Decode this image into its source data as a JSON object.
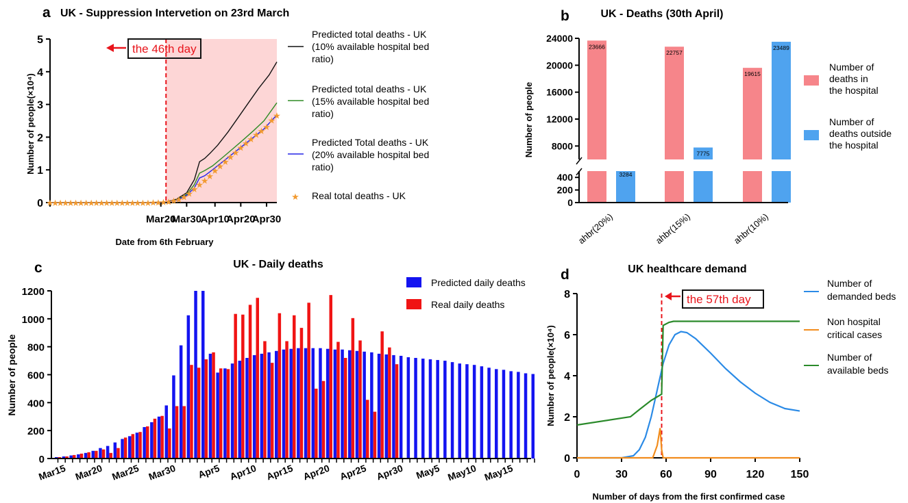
{
  "colors": {
    "shade": "#fdd6d6",
    "red": "#e8141b",
    "black": "#111111",
    "green": "#2e8b24",
    "blue": "#2424e6",
    "orange": "#f29a30",
    "bar_pink": "#f6858a",
    "bar_blue": "#4fa3ef",
    "d_blue": "#2a8ae6",
    "d_orange": "#f28c1c",
    "d_green": "#2a8a2a",
    "c_blue": "#1414f0",
    "c_red": "#f01414"
  },
  "panels": {
    "a": {
      "letter": "a",
      "title": "UK - Suppression Intervetion on 23rd March",
      "ylabel": "Number of people(×10⁴)",
      "xlabel": "Date from 6th February",
      "annotation": "the 46th day",
      "xtick_labels": [
        "Mar20",
        "Mar30",
        "Apr10",
        "Apr20",
        "Apr30"
      ],
      "legend": [
        {
          "lines": [
            "Predicted total deaths - UK",
            "(10% available hospital bed",
            "ratio)"
          ]
        },
        {
          "lines": [
            "Predicted total deaths - UK",
            "(15% available hospital bed",
            "ratio)"
          ]
        },
        {
          "lines": [
            "Predicted Total deaths - UK",
            "(20% available hospital bed",
            "ratio)"
          ]
        },
        {
          "lines": [
            "Real total deaths - UK"
          ]
        }
      ]
    },
    "b": {
      "letter": "b",
      "title": "UK - Deaths (30th April)",
      "ylabel": "Number of people",
      "legend": [
        {
          "lines": [
            "Number of",
            "deaths in",
            "the hospital"
          ]
        },
        {
          "lines": [
            "Number of",
            "deaths outside",
            "the hospital"
          ]
        }
      ]
    },
    "c": {
      "letter": "c",
      "title": "UK - Daily deaths",
      "ylabel": "Number of people",
      "legend": [
        "Predicted daily deaths",
        "Real daily deaths"
      ]
    },
    "d": {
      "letter": "d",
      "title": "UK healthcare demand",
      "ylabel": "Number of people(×10⁴)",
      "xlabel": "Number of days from the first confirmed case",
      "annotation": "the 57th day",
      "legend": [
        {
          "lines": [
            "Number of",
            "demanded beds"
          ]
        },
        {
          "lines": [
            "Non hospital",
            "critical cases"
          ]
        },
        {
          "lines": [
            "Number of",
            "available beds"
          ]
        }
      ]
    }
  },
  "chart_data": [
    {
      "id": "a",
      "type": "line",
      "title": "UK - Suppression Intervetion on 23rd March",
      "xlabel": "Date from 6th February",
      "ylabel": "Number of people(×10⁴)",
      "x_day_range": [
        1,
        84
      ],
      "ylim": [
        0,
        5
      ],
      "yticks": [
        0,
        1,
        2,
        3,
        4,
        5
      ],
      "xtick_days": [
        44,
        54,
        65,
        75,
        85
      ],
      "xtick_labels": [
        "Mar20",
        "Mar30",
        "Apr10",
        "Apr20",
        "Apr30"
      ],
      "intervention_day": 46,
      "shaded_from_day": 46,
      "series": [
        {
          "name": "Predicted total deaths - UK (10% available hospital bed ratio)",
          "style": "line",
          "color_key": "black",
          "points": [
            [
              1,
              0
            ],
            [
              40,
              0
            ],
            [
              46,
              0.02
            ],
            [
              50,
              0.1
            ],
            [
              54,
              0.3
            ],
            [
              57,
              0.7
            ],
            [
              59,
              1.25
            ],
            [
              61,
              1.35
            ],
            [
              63,
              1.5
            ],
            [
              66,
              1.75
            ],
            [
              70,
              2.15
            ],
            [
              74,
              2.6
            ],
            [
              78,
              3.05
            ],
            [
              82,
              3.5
            ],
            [
              86,
              3.9
            ],
            [
              89,
              4.3
            ]
          ]
        },
        {
          "name": "Predicted total deaths - UK (15% available hospital bed ratio)",
          "style": "line",
          "color_key": "green",
          "points": [
            [
              1,
              0
            ],
            [
              40,
              0
            ],
            [
              46,
              0.02
            ],
            [
              50,
              0.08
            ],
            [
              54,
              0.25
            ],
            [
              57,
              0.55
            ],
            [
              59,
              0.9
            ],
            [
              61,
              0.98
            ],
            [
              64,
              1.12
            ],
            [
              68,
              1.38
            ],
            [
              72,
              1.65
            ],
            [
              76,
              1.92
            ],
            [
              80,
              2.2
            ],
            [
              84,
              2.5
            ],
            [
              89,
              3.05
            ]
          ]
        },
        {
          "name": "Predicted Total deaths - UK (20% available hospital bed ratio)",
          "style": "line",
          "color_key": "blue",
          "points": [
            [
              1,
              0
            ],
            [
              40,
              0
            ],
            [
              46,
              0.02
            ],
            [
              50,
              0.07
            ],
            [
              54,
              0.22
            ],
            [
              57,
              0.45
            ],
            [
              59,
              0.75
            ],
            [
              61,
              0.82
            ],
            [
              64,
              1.0
            ],
            [
              68,
              1.25
            ],
            [
              72,
              1.5
            ],
            [
              76,
              1.75
            ],
            [
              80,
              2.0
            ],
            [
              84,
              2.25
            ],
            [
              89,
              2.68
            ]
          ]
        },
        {
          "name": "Real total deaths - UK",
          "style": "marker",
          "color_key": "orange",
          "points": [
            [
              1,
              0
            ],
            [
              3,
              0
            ],
            [
              5,
              0
            ],
            [
              7,
              0
            ],
            [
              9,
              0
            ],
            [
              11,
              0
            ],
            [
              13,
              0
            ],
            [
              15,
              0
            ],
            [
              17,
              0
            ],
            [
              19,
              0
            ],
            [
              21,
              0
            ],
            [
              23,
              0
            ],
            [
              25,
              0
            ],
            [
              27,
              0
            ],
            [
              29,
              0
            ],
            [
              31,
              0
            ],
            [
              33,
              0
            ],
            [
              35,
              0
            ],
            [
              37,
              0
            ],
            [
              39,
              0
            ],
            [
              41,
              0.01
            ],
            [
              43,
              0.01
            ],
            [
              45,
              0.02
            ],
            [
              47,
              0.03
            ],
            [
              49,
              0.06
            ],
            [
              51,
              0.1
            ],
            [
              53,
              0.18
            ],
            [
              55,
              0.28
            ],
            [
              57,
              0.42
            ],
            [
              59,
              0.55
            ],
            [
              61,
              0.68
            ],
            [
              63,
              0.82
            ],
            [
              65,
              0.98
            ],
            [
              67,
              1.12
            ],
            [
              69,
              1.26
            ],
            [
              71,
              1.4
            ],
            [
              73,
              1.54
            ],
            [
              75,
              1.68
            ],
            [
              77,
              1.82
            ],
            [
              79,
              1.95
            ],
            [
              81,
              2.08
            ],
            [
              83,
              2.2
            ],
            [
              85,
              2.32
            ],
            [
              87,
              2.52
            ],
            [
              89,
              2.67
            ]
          ]
        }
      ]
    },
    {
      "id": "b",
      "type": "bar",
      "title": "UK - Deaths (30th April)",
      "ylabel": "Number of people",
      "categories": [
        "ahbr(20%)",
        "ahbr(15%)",
        "ahbr(10%)"
      ],
      "ylim": [
        0,
        24000
      ],
      "axis_break": [
        500,
        4000
      ],
      "yticks": [
        0,
        200,
        400,
        8000,
        12000,
        16000,
        20000,
        24000
      ],
      "series": [
        {
          "name": "Number of deaths in the hospital",
          "color_key": "bar_pink",
          "values": [
            23666,
            22757,
            19615
          ],
          "labels": [
            "23666",
            "22757",
            "19615"
          ]
        },
        {
          "name": "Number of deaths outside the hospital",
          "color_key": "bar_blue",
          "values": [
            3284,
            7775,
            23489
          ],
          "labels": [
            "3284",
            "7775",
            "23489"
          ]
        }
      ]
    },
    {
      "id": "c",
      "type": "bar",
      "title": "UK - Daily deaths",
      "ylabel": "Number of people",
      "ylim": [
        0,
        1200
      ],
      "yticks": [
        0,
        200,
        400,
        600,
        800,
        1000,
        1200
      ],
      "day_range": [
        "Mar14",
        "May16"
      ],
      "xtick_labels": [
        "Mar15",
        "Mar20",
        "Mar25",
        "Mar30",
        "Apr5",
        "Apr10",
        "Apr15",
        "Apr20",
        "Apr25",
        "Apr30",
        "May5",
        "May10",
        "May15"
      ],
      "xtick_day_index": [
        1,
        6,
        11,
        16,
        22,
        27,
        32,
        37,
        42,
        47,
        52,
        57,
        62
      ],
      "series": [
        {
          "name": "Predicted daily deaths",
          "color_key": "c_blue",
          "values": [
            10,
            15,
            22,
            30,
            40,
            55,
            75,
            90,
            115,
            140,
            160,
            185,
            225,
            260,
            300,
            380,
            595,
            810,
            1025,
            1200,
            1200,
            750,
            615,
            645,
            680,
            700,
            720,
            740,
            750,
            760,
            770,
            780,
            785,
            790,
            790,
            790,
            790,
            785,
            780,
            780,
            775,
            770,
            765,
            760,
            750,
            745,
            740,
            735,
            725,
            720,
            715,
            710,
            705,
            700,
            690,
            680,
            675,
            670,
            660,
            650,
            640,
            635,
            625,
            620,
            610,
            605
          ]
        },
        {
          "name": "Real daily deaths",
          "color_key": "c_red",
          "values": [
            10,
            15,
            25,
            35,
            45,
            55,
            65,
            40,
            75,
            150,
            175,
            190,
            230,
            285,
            305,
            215,
            375,
            375,
            670,
            650,
            710,
            760,
            645,
            640,
            1035,
            1030,
            1100,
            1150,
            840,
            685,
            1040,
            840,
            1025,
            935,
            1115,
            500,
            555,
            1170,
            835,
            720,
            1005,
            845,
            420,
            335,
            910,
            795,
            675
          ]
        }
      ]
    },
    {
      "id": "d",
      "type": "line",
      "title": "UK healthcare demand",
      "xlabel": "Number of days from the first confirmed case",
      "ylabel": "Number of people(×10⁴)",
      "xlim": [
        0,
        150
      ],
      "ylim": [
        0,
        8
      ],
      "xticks": [
        0,
        30,
        60,
        90,
        120,
        150
      ],
      "yticks": [
        0,
        2,
        4,
        6,
        8
      ],
      "marker_day": 57,
      "series": [
        {
          "name": "Number of demanded beds",
          "color_key": "d_blue",
          "points": [
            [
              0,
              0
            ],
            [
              30,
              0
            ],
            [
              38,
              0.1
            ],
            [
              42,
              0.4
            ],
            [
              46,
              1.0
            ],
            [
              50,
              2.0
            ],
            [
              54,
              3.3
            ],
            [
              58,
              4.6
            ],
            [
              62,
              5.5
            ],
            [
              66,
              6.0
            ],
            [
              70,
              6.15
            ],
            [
              74,
              6.1
            ],
            [
              80,
              5.8
            ],
            [
              90,
              5.1
            ],
            [
              100,
              4.35
            ],
            [
              110,
              3.7
            ],
            [
              120,
              3.15
            ],
            [
              130,
              2.7
            ],
            [
              140,
              2.4
            ],
            [
              150,
              2.28
            ]
          ]
        },
        {
          "name": "Non hospital critical cases",
          "color_key": "d_orange",
          "points": [
            [
              0,
              0
            ],
            [
              51,
              0
            ],
            [
              54,
              0.6
            ],
            [
              56,
              1.45
            ],
            [
              57,
              0.4
            ],
            [
              58,
              0
            ],
            [
              150,
              0
            ]
          ]
        },
        {
          "name": "Number of available beds",
          "color_key": "d_green",
          "points": [
            [
              0,
              1.6
            ],
            [
              36,
              2.0
            ],
            [
              42,
              2.35
            ],
            [
              50,
              2.8
            ],
            [
              57,
              3.1
            ],
            [
              58,
              6.45
            ],
            [
              62,
              6.6
            ],
            [
              65,
              6.65
            ],
            [
              150,
              6.65
            ]
          ]
        }
      ]
    }
  ]
}
